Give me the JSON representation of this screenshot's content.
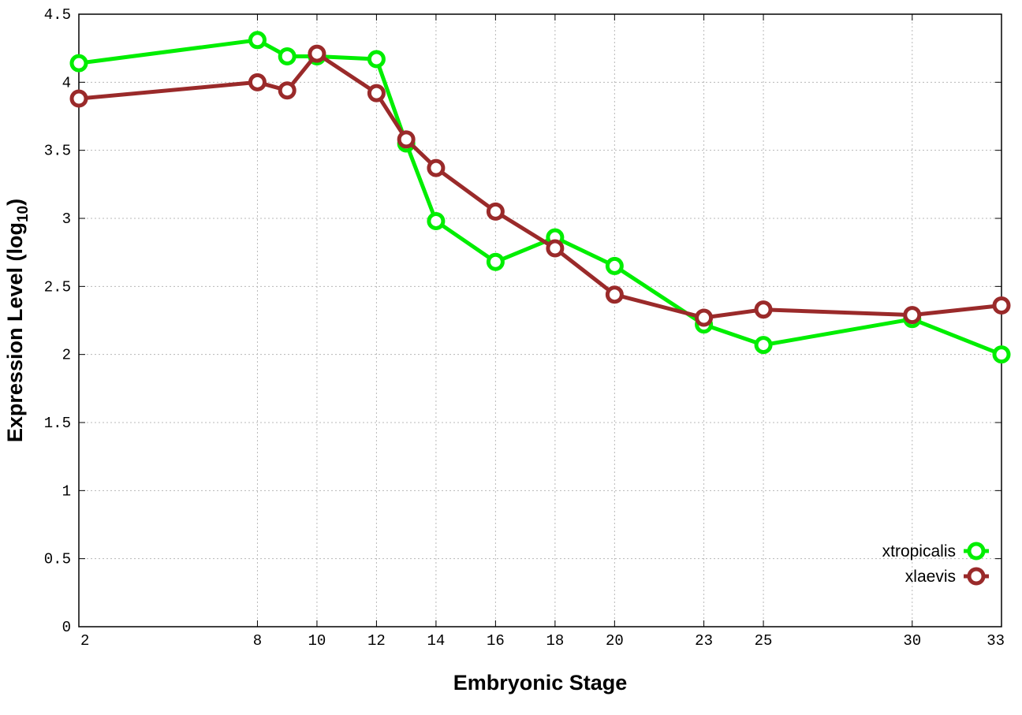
{
  "chart_data": {
    "type": "line",
    "title": "",
    "xlabel": "Embryonic Stage",
    "ylabel_main": "Expression Level (log",
    "ylabel_sub": "10",
    "ylabel_close": ")",
    "xlim": [
      2,
      33
    ],
    "ylim": [
      0,
      4.5
    ],
    "x_ticks": [
      2,
      8,
      10,
      12,
      14,
      16,
      18,
      20,
      23,
      25,
      30,
      33
    ],
    "y_ticks": [
      0,
      0.5,
      1,
      1.5,
      2,
      2.5,
      3,
      3.5,
      4,
      4.5
    ],
    "y_tick_labels": [
      "0",
      "0.5",
      "1",
      "1.5",
      "2",
      "2.5",
      "3",
      "3.5",
      "4",
      "4.5"
    ],
    "grid": true,
    "legend_position": "bottom-right",
    "x": [
      2,
      8,
      9,
      10,
      12,
      13,
      14,
      16,
      18,
      20,
      23,
      25,
      30,
      33
    ],
    "series": [
      {
        "name": "xtropicalis",
        "color": "#00ee00",
        "values": [
          4.14,
          4.31,
          4.19,
          4.19,
          4.17,
          3.55,
          2.98,
          2.68,
          2.86,
          2.65,
          2.22,
          2.07,
          2.26,
          2.0
        ]
      },
      {
        "name": "xlaevis",
        "color": "#9a2a2a",
        "values": [
          3.88,
          4.0,
          3.94,
          4.21,
          3.92,
          3.58,
          3.37,
          3.05,
          2.78,
          2.44,
          2.27,
          2.33,
          2.29,
          2.36
        ]
      }
    ]
  }
}
